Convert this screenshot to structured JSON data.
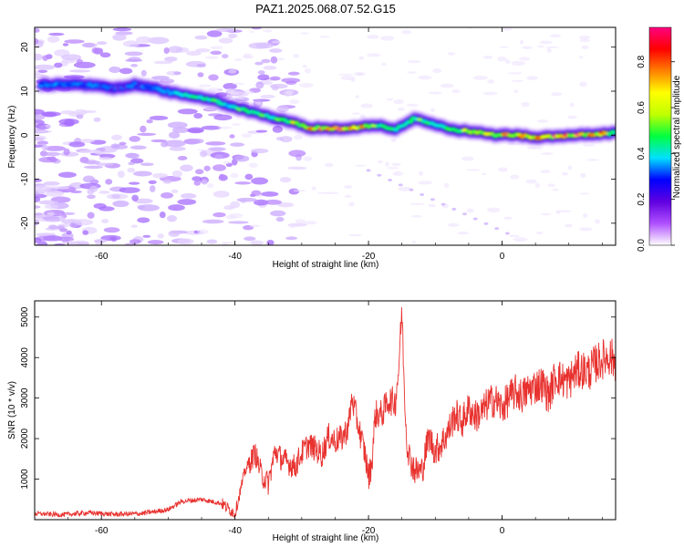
{
  "chart_data": [
    {
      "type": "heatmap",
      "title": "PAZ1.2025.068.07.52.G15",
      "xlabel": "Height of straight line (km)",
      "ylabel": "Frequency (Hz)",
      "xlim": [
        -70,
        17
      ],
      "ylim": [
        -25,
        24.5
      ],
      "x_ticks": [
        -60,
        -40,
        -20,
        0
      ],
      "y_ticks": [
        -20,
        -10,
        0,
        10,
        20
      ],
      "colorbar": {
        "label": "Normalized spectral amplitude",
        "range": [
          0,
          0.95
        ],
        "ticks": [
          0.0,
          0.2,
          0.4,
          0.6,
          0.8
        ],
        "colors": [
          "#ffffff",
          "#b050ff",
          "#6000e0",
          "#0000ff",
          "#00e0ff",
          "#00ff40",
          "#c0ff00",
          "#ffff00",
          "#ff8000",
          "#ff0000",
          "#ff0080"
        ]
      },
      "ridge": [
        {
          "x": -69,
          "y": 11.5,
          "a": 0.25
        },
        {
          "x": -65,
          "y": 11.5,
          "a": 0.28
        },
        {
          "x": -61,
          "y": 11.3,
          "a": 0.25
        },
        {
          "x": -58,
          "y": 10.6,
          "a": 0.22
        },
        {
          "x": -55,
          "y": 11.5,
          "a": 0.26
        },
        {
          "x": -52,
          "y": 10.8,
          "a": 0.28
        },
        {
          "x": -50,
          "y": 9.8,
          "a": 0.3
        },
        {
          "x": -47,
          "y": 9.0,
          "a": 0.45
        },
        {
          "x": -44,
          "y": 8.2,
          "a": 0.5
        },
        {
          "x": -41,
          "y": 6.8,
          "a": 0.35
        },
        {
          "x": -38,
          "y": 5.5,
          "a": 0.55
        },
        {
          "x": -35,
          "y": 4.2,
          "a": 0.45
        },
        {
          "x": -32,
          "y": 3.2,
          "a": 0.6
        },
        {
          "x": -29,
          "y": 1.7,
          "a": 0.75
        },
        {
          "x": -25,
          "y": 1.6,
          "a": 0.85
        },
        {
          "x": -22,
          "y": 1.7,
          "a": 0.8
        },
        {
          "x": -19,
          "y": 2.3,
          "a": 0.55
        },
        {
          "x": -16,
          "y": 1.4,
          "a": 0.5
        },
        {
          "x": -13,
          "y": 3.8,
          "a": 0.5
        },
        {
          "x": -10,
          "y": 2.5,
          "a": 0.45
        },
        {
          "x": -7,
          "y": 1.2,
          "a": 0.6
        },
        {
          "x": -4,
          "y": 0.7,
          "a": 0.75
        },
        {
          "x": -1,
          "y": 0.0,
          "a": 0.7
        },
        {
          "x": 2,
          "y": 0.0,
          "a": 0.8
        },
        {
          "x": 6,
          "y": -0.6,
          "a": 0.9
        },
        {
          "x": 10,
          "y": 0.0,
          "a": 0.85
        },
        {
          "x": 14,
          "y": 0.2,
          "a": 0.75
        },
        {
          "x": 17,
          "y": 0.5,
          "a": 0.6
        }
      ]
    },
    {
      "type": "line",
      "xlabel": "Height of straight line (km)",
      "ylabel": "SNR (10 * v/v)",
      "xlim": [
        -70,
        17
      ],
      "ylim": [
        0,
        5400
      ],
      "x_ticks": [
        -60,
        -40,
        -20,
        0
      ],
      "y_ticks": [
        1000,
        2000,
        3000,
        4000,
        5000
      ],
      "color": "#e8322f",
      "x": [
        -70,
        -66,
        -62,
        -58,
        -54,
        -50,
        -48,
        -45,
        -42,
        -40,
        -38.5,
        -37,
        -36,
        -35,
        -34,
        -33,
        -32,
        -31,
        -30,
        -29,
        -28,
        -27,
        -26,
        -25,
        -24,
        -23,
        -22.5,
        -21.5,
        -20.5,
        -20,
        -19.5,
        -19,
        -18,
        -17,
        -16,
        -15.5,
        -15,
        -14.7,
        -14.3,
        -13.8,
        -13,
        -12,
        -11,
        -10,
        -9,
        -8,
        -7,
        -6,
        -5,
        -4,
        -3,
        -2,
        -1,
        0,
        1,
        2,
        3,
        4,
        5,
        6,
        7,
        8,
        9,
        10,
        11,
        12,
        13,
        14,
        15,
        16,
        17
      ],
      "y": [
        150,
        120,
        170,
        130,
        150,
        250,
        450,
        500,
        400,
        150,
        1200,
        1650,
        1100,
        900,
        1700,
        1500,
        1400,
        1300,
        1650,
        1850,
        1750,
        1600,
        2050,
        1950,
        2000,
        2300,
        3000,
        2300,
        1600,
        1050,
        1400,
        2600,
        2600,
        2950,
        2900,
        3700,
        5200,
        3500,
        2000,
        1500,
        1200,
        1200,
        2050,
        1700,
        1900,
        2200,
        2600,
        2400,
        2750,
        2550,
        2650,
        2900,
        2950,
        2750,
        3000,
        3150,
        3050,
        3200,
        3300,
        3350,
        3050,
        3550,
        3450,
        3400,
        3650,
        3700,
        3650,
        3850,
        3950,
        4050,
        3900
      ]
    }
  ]
}
